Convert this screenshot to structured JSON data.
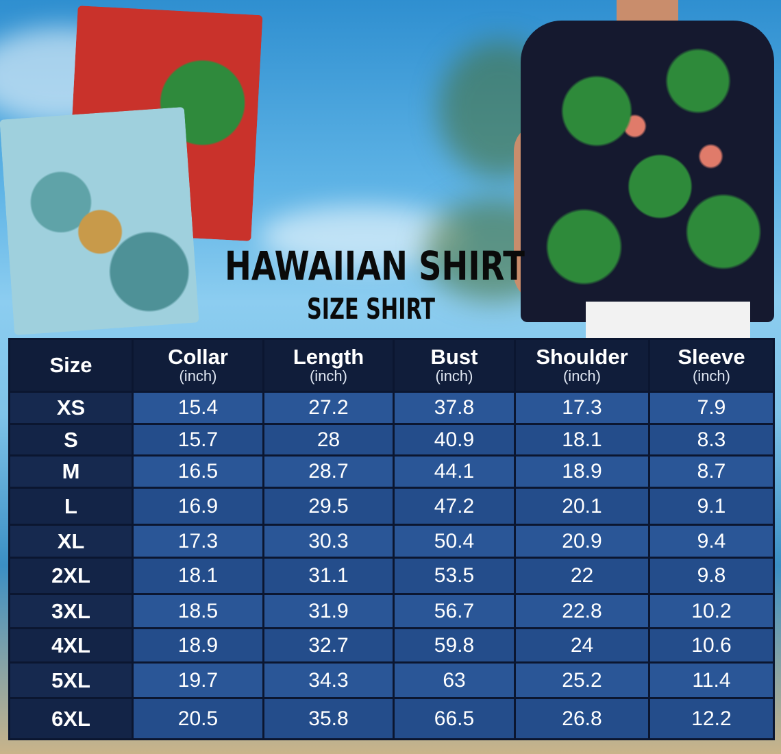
{
  "title": "HAWAIIAN SHIRT",
  "subtitle": "SIZE SHIRT",
  "colors": {
    "header_bg": "#101d3a",
    "cell_bg": "#2a5697",
    "border": "#0b1630",
    "text": "#ffffff"
  },
  "table": {
    "headers": [
      {
        "label": "Size",
        "unit": ""
      },
      {
        "label": "Collar",
        "unit": "(inch)"
      },
      {
        "label": "Length",
        "unit": "(inch)"
      },
      {
        "label": "Bust",
        "unit": "(inch)"
      },
      {
        "label": "Shoulder",
        "unit": "(inch)"
      },
      {
        "label": "Sleeve",
        "unit": "(inch)"
      }
    ],
    "rows": [
      [
        "XS",
        "15.4",
        "27.2",
        "37.8",
        "17.3",
        "7.9"
      ],
      [
        "S",
        "15.7",
        "28",
        "40.9",
        "18.1",
        "8.3"
      ],
      [
        "M",
        "16.5",
        "28.7",
        "44.1",
        "18.9",
        "8.7"
      ],
      [
        "L",
        "16.9",
        "29.5",
        "47.2",
        "20.1",
        "9.1"
      ],
      [
        "XL",
        "17.3",
        "30.3",
        "50.4",
        "20.9",
        "9.4"
      ],
      [
        "2XL",
        "18.1",
        "31.1",
        "53.5",
        "22",
        "9.8"
      ],
      [
        "3XL",
        "18.5",
        "31.9",
        "56.7",
        "22.8",
        "10.2"
      ],
      [
        "4XL",
        "18.9",
        "32.7",
        "59.8",
        "24",
        "10.6"
      ],
      [
        "5XL",
        "19.7",
        "34.3",
        "63",
        "25.2",
        "11.4"
      ],
      [
        "6XL",
        "20.5",
        "35.8",
        "66.5",
        "26.8",
        "12.2"
      ]
    ]
  }
}
